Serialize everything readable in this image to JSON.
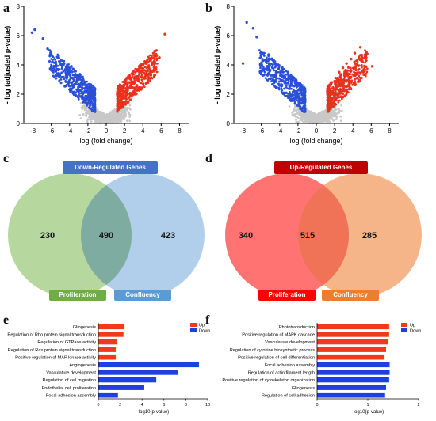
{
  "panel_labels": [
    "a",
    "b",
    "c",
    "d",
    "e",
    "f"
  ],
  "volcano": {
    "ylabel": "- log (adjusted p-value)",
    "xlabel": "log (fold change)",
    "x_ticks": [
      "-8",
      "-6",
      "-4",
      "-2",
      "0",
      "2",
      "4",
      "6",
      "8"
    ],
    "y_ticks": [
      "0",
      "2",
      "4",
      "6",
      "8"
    ],
    "colors": {
      "down": "#2a4fd8",
      "up": "#e8321e",
      "ns": "#c8c8c8"
    }
  },
  "venn_c": {
    "title": "Down-Regulated Genes",
    "left_label": "Proliferation",
    "right_label": "Confluency",
    "left_only": "230",
    "overlap": "490",
    "right_only": "423",
    "colors": {
      "title": "#4472c4",
      "left": "#a9d18e",
      "right": "#9dc3e6",
      "left_tag": "#70ad47",
      "right_tag": "#5b9bd5"
    }
  },
  "venn_d": {
    "title": "Up-Regulated Genes",
    "left_label": "Proliferation",
    "right_label": "Confluency",
    "left_only": "340",
    "overlap": "515",
    "right_only": "285",
    "colors": {
      "title": "#c00000",
      "left": "#ff6b6b",
      "right": "#f4b183",
      "left_tag": "#ff0000",
      "right_tag": "#ed7d31"
    }
  },
  "chart_data": [
    {
      "type": "scatter",
      "panel": "a",
      "xlabel": "log (fold change)",
      "ylabel": "- log (adjusted p-value)",
      "xlim": [
        -9,
        9
      ],
      "ylim": [
        0,
        8
      ],
      "series": [
        {
          "name": "Down",
          "x": [
            -8.1,
            -7.8,
            -6.9,
            -6.4,
            -5.9,
            -5.6,
            -5.2,
            -4.6,
            -4.1,
            -3.8,
            -3.4,
            -3.0,
            -2.6,
            -2.3,
            -2.0,
            -1.7
          ],
          "y": [
            6.2,
            6.4,
            5.8,
            5.1,
            4.2,
            3.9,
            4.6,
            4.1,
            3.6,
            3.9,
            3.3,
            3.0,
            2.6,
            2.4,
            2.1,
            1.9
          ]
        },
        {
          "name": "Up",
          "x": [
            1.2,
            1.6,
            2.0,
            2.4,
            2.8,
            3.2,
            3.6,
            4.0,
            4.4,
            4.8,
            5.3,
            5.8,
            6.4
          ],
          "y": [
            2.0,
            2.5,
            2.8,
            3.1,
            3.4,
            3.7,
            3.9,
            4.0,
            4.1,
            4.3,
            4.2,
            4.5,
            6.1
          ]
        }
      ]
    },
    {
      "type": "scatter",
      "panel": "b",
      "xlabel": "log (fold change)",
      "ylabel": "- log (adjusted p-value)",
      "xlim": [
        -9,
        9
      ],
      "ylim": [
        0,
        8
      ],
      "series": [
        {
          "name": "Down",
          "x": [
            -8.0,
            -7.6,
            -6.9,
            -6.5,
            -5.8,
            -5.2,
            -4.7,
            -4.2,
            -3.7,
            -3.1,
            -2.6,
            -2.2,
            -1.8
          ],
          "y": [
            4.1,
            6.9,
            6.5,
            5.9,
            4.8,
            4.7,
            4.3,
            4.0,
            3.8,
            3.5,
            3.1,
            2.8,
            2.6
          ]
        },
        {
          "name": "Up",
          "x": [
            1.2,
            1.6,
            2.1,
            2.5,
            2.9,
            3.3,
            3.8,
            4.2,
            4.8,
            5.4,
            6.1
          ],
          "y": [
            2.2,
            2.8,
            3.1,
            3.5,
            3.8,
            4.1,
            4.4,
            4.8,
            5.2,
            4.6,
            3.9
          ]
        }
      ]
    },
    {
      "type": "bar",
      "panel": "e",
      "orientation": "horizontal",
      "xlabel": "-log10(p-value)",
      "xlim": [
        0,
        10
      ],
      "x_ticks": [
        "0",
        "2",
        "4",
        "6",
        "8",
        "10"
      ],
      "legend": [
        "Up",
        "Down"
      ],
      "legend_placement": "top-right",
      "colors": {
        "Up": "#f03a1e",
        "Down": "#1f3fe0"
      },
      "categories": [
        "Gliogenesis",
        "Regulation of Rho protein signal transduction",
        "Regulation of GTPase activity",
        "Regulation of Ras protein signal transduction",
        "Positive regulation of MAP kinase activity",
        "Angiogenesis",
        "Vasculature development",
        "Regulation of cell migration",
        "Endothelial cell proliferation",
        "Focal adhesion assembly"
      ],
      "groups": [
        "Up",
        "Up",
        "Up",
        "Up",
        "Up",
        "Down",
        "Down",
        "Down",
        "Down",
        "Down"
      ],
      "values": [
        2.4,
        2.3,
        1.7,
        1.6,
        1.6,
        9.2,
        7.3,
        5.3,
        4.2,
        1.8
      ]
    },
    {
      "type": "bar",
      "panel": "f",
      "orientation": "horizontal",
      "xlabel": "-log10(p-value)",
      "xlim": [
        0,
        2
      ],
      "x_ticks": [
        "0",
        "1",
        "2"
      ],
      "legend": [
        "Up",
        "Down"
      ],
      "legend_placement": "top-right",
      "colors": {
        "Up": "#f03a1e",
        "Down": "#1f3fe0"
      },
      "categories": [
        "Phototransduction",
        "Positive regulation of MAPK cascade",
        "Vasculature development",
        "Regulation of cytokine biosynthetic process",
        "Positive regulation of cell differentiation",
        "Focal adhesion assembly",
        "Regulation of actin filament length",
        "Positive regulation of cytoskeleton organization",
        "Gliogenesis",
        "Regulation of cell adhesion"
      ],
      "groups": [
        "Up",
        "Up",
        "Up",
        "Up",
        "Up",
        "Down",
        "Down",
        "Down",
        "Down",
        "Down"
      ],
      "values": [
        1.42,
        1.42,
        1.4,
        1.36,
        1.33,
        1.43,
        1.43,
        1.42,
        1.36,
        1.34
      ]
    }
  ]
}
